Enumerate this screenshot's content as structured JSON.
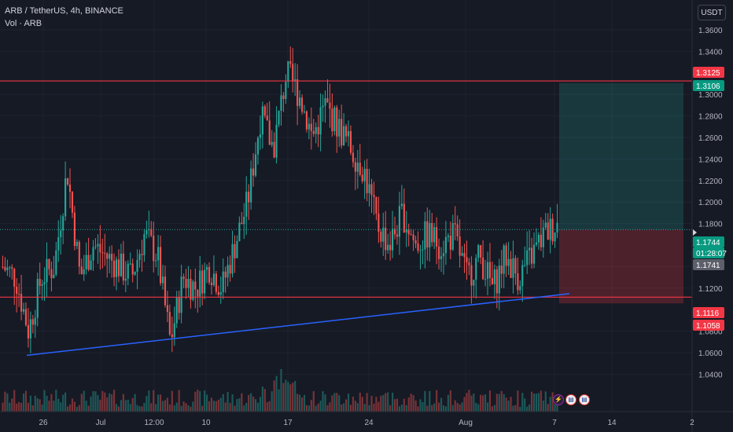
{
  "header": {
    "symbol": "ARB / TetherUS",
    "interval": "4h",
    "exchange": "BINANCE",
    "volume_label": "Vol · ARB"
  },
  "currency_button": "USDT",
  "colors": {
    "background": "#161a25",
    "up": "#26a69a",
    "down": "#ef5350",
    "hline": "#f23645",
    "trendline": "#2962ff",
    "target_zone": "#26a69a",
    "stop_zone": "#f23645"
  },
  "icons": [
    "lightning-event-icon",
    "us-flag-event-icon",
    "us-flag-event-icon"
  ],
  "chart_data": {
    "type": "candlestick",
    "y_axis": {
      "ticks": [
        "1.3600",
        "1.3400",
        "1.3000",
        "1.2800",
        "1.2600",
        "1.2400",
        "1.2200",
        "1.2000",
        "1.1800",
        "1.1400",
        "1.1200",
        "1.0800",
        "1.0600",
        "1.0400"
      ],
      "range": [
        1.03,
        1.37
      ]
    },
    "x_axis": {
      "ticks": [
        "26",
        "Jul",
        "12:00",
        "10",
        "17",
        "24",
        "Aug",
        "7",
        "14",
        "2"
      ]
    },
    "horizontal_lines": [
      1.3125,
      1.1116
    ],
    "trendline": {
      "from": 1.0575,
      "to": 1.1148
    },
    "position": {
      "entry": 1.1744,
      "target": 1.3106,
      "stop": 1.1058
    },
    "price_labels": [
      {
        "value": "1.3125",
        "color": "#f23645"
      },
      {
        "value": "1.3106",
        "color": "#089981"
      },
      {
        "value": "1.1744",
        "color": "#089981"
      },
      {
        "value": "01:28:07",
        "color": "#089981"
      },
      {
        "value": "1.1741",
        "color": "#5d606b"
      },
      {
        "value": "1.1116",
        "color": "#f23645"
      },
      {
        "value": "1.1058",
        "color": "#f23645"
      }
    ],
    "series_anchor_prices": [
      1.14,
      1.13,
      1.08,
      1.13,
      1.14,
      1.23,
      1.13,
      1.16,
      1.15,
      1.14,
      1.13,
      1.17,
      1.15,
      1.07,
      1.13,
      1.12,
      1.14,
      1.12,
      1.16,
      1.2,
      1.28,
      1.25,
      1.32,
      1.3,
      1.26,
      1.29,
      1.27,
      1.25,
      1.23,
      1.18,
      1.16,
      1.19,
      1.16,
      1.17,
      1.16,
      1.17,
      1.13,
      1.15,
      1.12,
      1.15,
      1.13,
      1.15,
      1.17,
      1.18
    ]
  }
}
